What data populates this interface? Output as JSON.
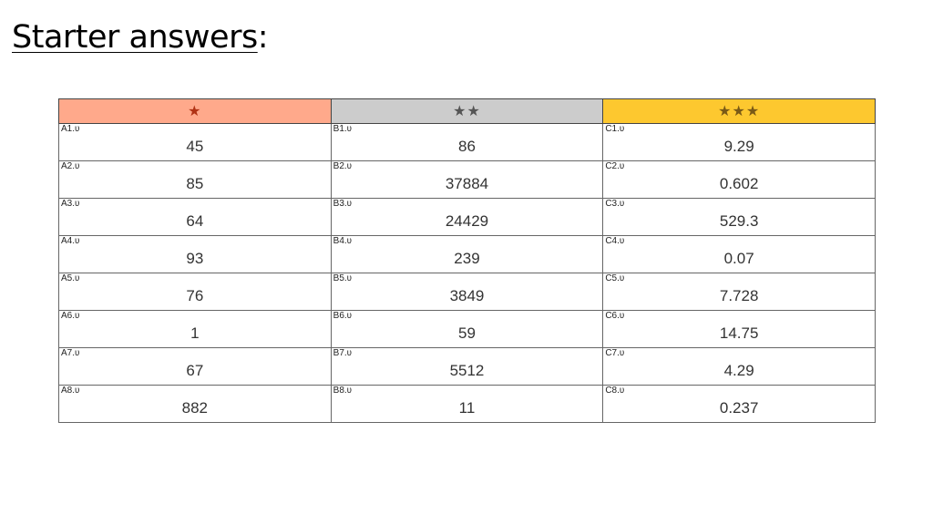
{
  "slide": {
    "title_main": "Starter answers",
    "title_suffix": ":"
  },
  "table": {
    "headers": [
      {
        "label": "★",
        "level": 1,
        "color": "#ffa98b"
      },
      {
        "label": "★★",
        "level": 2,
        "color": "#cccccc"
      },
      {
        "label": "★★★",
        "level": 3,
        "color": "#fdc82f"
      }
    ],
    "rows": [
      [
        {
          "q": "A1.ʋ",
          "a": "45"
        },
        {
          "q": "B1.ʋ",
          "a": "86"
        },
        {
          "q": "C1.ʋ",
          "a": "9.29"
        }
      ],
      [
        {
          "q": "A2.ʋ",
          "a": "85"
        },
        {
          "q": "B2.ʋ",
          "a": "37884"
        },
        {
          "q": "C2.ʋ",
          "a": "0.602"
        }
      ],
      [
        {
          "q": "A3.ʋ",
          "a": "64"
        },
        {
          "q": "B3.ʋ",
          "a": "24429"
        },
        {
          "q": "C3.ʋ",
          "a": "529.3"
        }
      ],
      [
        {
          "q": "A4.ʋ",
          "a": "93"
        },
        {
          "q": "B4.ʋ",
          "a": "239"
        },
        {
          "q": "C4.ʋ",
          "a": "0.07"
        }
      ],
      [
        {
          "q": "A5.ʋ",
          "a": "76"
        },
        {
          "q": "B5.ʋ",
          "a": "3849"
        },
        {
          "q": "C5.ʋ",
          "a": "7.728"
        }
      ],
      [
        {
          "q": "A6.ʋ",
          "a": "1"
        },
        {
          "q": "B6.ʋ",
          "a": "59"
        },
        {
          "q": "C6.ʋ",
          "a": "14.75"
        }
      ],
      [
        {
          "q": "A7.ʋ",
          "a": "67"
        },
        {
          "q": "B7.ʋ",
          "a": "5512"
        },
        {
          "q": "C7.ʋ",
          "a": "4.29"
        }
      ],
      [
        {
          "q": "A8.ʋ",
          "a": "882"
        },
        {
          "q": "B8.ʋ",
          "a": "11"
        },
        {
          "q": "C8.ʋ",
          "a": "0.237"
        }
      ]
    ]
  }
}
